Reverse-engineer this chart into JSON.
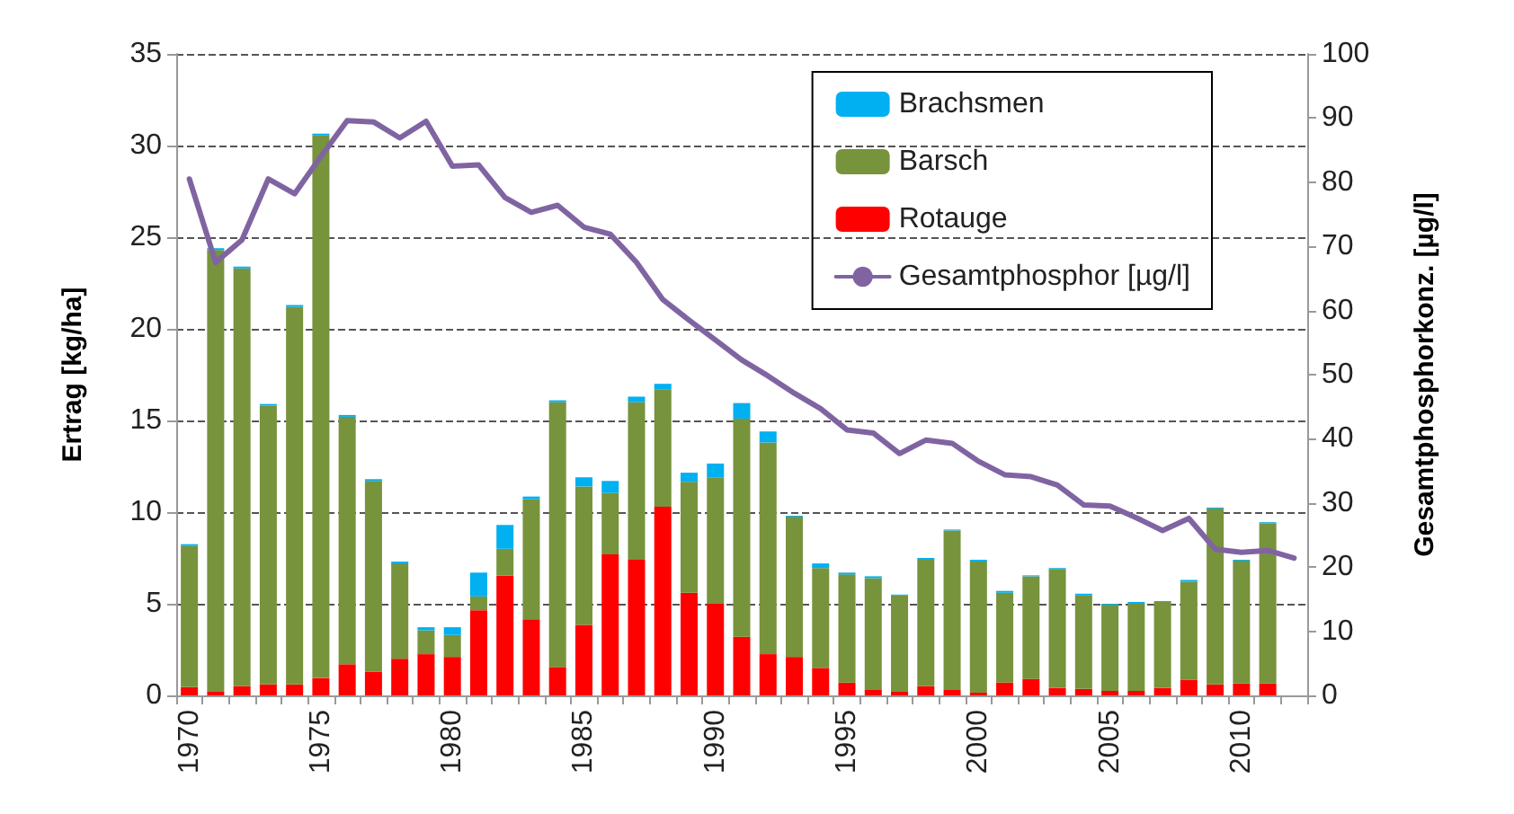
{
  "chart_data": {
    "type": "bar",
    "stacked": true,
    "ylabel": "Ertrag [kg/ha]",
    "y2label": "Gesamtphosphorkonz. [µg/l]",
    "categories": [
      "1970",
      null,
      null,
      null,
      null,
      "1975",
      null,
      null,
      null,
      null,
      "1980",
      null,
      null,
      null,
      null,
      "1985",
      null,
      null,
      null,
      null,
      "1990",
      null,
      null,
      null,
      null,
      "1995",
      null,
      null,
      null,
      null,
      "2000",
      null,
      null,
      null,
      null,
      "2005",
      null,
      null,
      null,
      null,
      "2010",
      null,
      null
    ],
    "series": [
      {
        "name": "Rotauge",
        "color": "#ff0000",
        "values": [
          0.45,
          0.2,
          0.5,
          0.6,
          0.6,
          0.95,
          1.7,
          1.3,
          2.0,
          2.25,
          2.1,
          4.65,
          6.55,
          4.15,
          1.55,
          3.85,
          7.7,
          7.4,
          10.3,
          5.6,
          5.0,
          3.2,
          2.25,
          2.1,
          1.5,
          0.7,
          0.3,
          0.2,
          0.5,
          0.3,
          0.15,
          0.7,
          0.9,
          0.4,
          0.35,
          0.25,
          0.25,
          0.4,
          0.85,
          0.6,
          0.65,
          0.65,
          null
        ]
      },
      {
        "name": "Barsch",
        "color": "#77933c",
        "values": [
          7.7,
          24.1,
          22.8,
          15.2,
          20.6,
          29.6,
          13.5,
          10.4,
          5.2,
          1.3,
          1.2,
          0.75,
          1.45,
          6.55,
          14.45,
          7.55,
          3.35,
          8.6,
          6.4,
          6.05,
          6.9,
          11.9,
          11.55,
          7.65,
          5.45,
          5.9,
          6.1,
          5.25,
          6.9,
          8.7,
          7.15,
          4.9,
          5.6,
          6.5,
          5.1,
          4.7,
          4.75,
          4.7,
          5.35,
          9.6,
          6.7,
          8.75,
          null
        ]
      },
      {
        "name": "Brachsmen",
        "color": "#00b0f0",
        "values": [
          0.1,
          0.1,
          0.1,
          0.1,
          0.1,
          0.1,
          0.1,
          0.1,
          0.1,
          0.17,
          0.42,
          1.3,
          1.3,
          0.15,
          0.1,
          0.5,
          0.65,
          0.3,
          0.3,
          0.5,
          0.75,
          0.85,
          0.6,
          0.05,
          0.25,
          0.1,
          0.1,
          0.05,
          0.1,
          0.05,
          0.1,
          0.1,
          0.05,
          0.05,
          0.1,
          0.05,
          0.1,
          0.05,
          0.1,
          0.05,
          0.05,
          0.05,
          null
        ]
      },
      {
        "name": "Gesamtphosphor [µg/l]",
        "type": "line",
        "axis": "y2",
        "color": "#8064a2",
        "values": [
          80.5,
          67.5,
          71,
          80.5,
          78.2,
          84,
          89.6,
          89.4,
          86.9,
          89.5,
          82.5,
          82.7,
          77.6,
          75.3,
          76.4,
          73,
          71.9,
          67.5,
          61.7,
          58.5,
          55.4,
          52.3,
          49.8,
          47.1,
          44.7,
          41.4,
          40.9,
          37.7,
          39.8,
          39.3,
          36.5,
          34.4,
          34.1,
          32.8,
          29.7,
          29.5,
          27.7,
          25.7,
          27.6,
          22.8,
          22.3,
          22.6,
          21.4
        ]
      }
    ],
    "ylim": [
      0,
      35
    ],
    "yticks": [
      0,
      5,
      10,
      15,
      20,
      25,
      30,
      35
    ],
    "y2lim": [
      0,
      100
    ],
    "y2ticks": [
      0,
      10,
      20,
      30,
      40,
      50,
      60,
      70,
      80,
      90,
      100
    ],
    "grid": "y",
    "legend": "top right",
    "marker": "none",
    "line_style": "solid"
  }
}
